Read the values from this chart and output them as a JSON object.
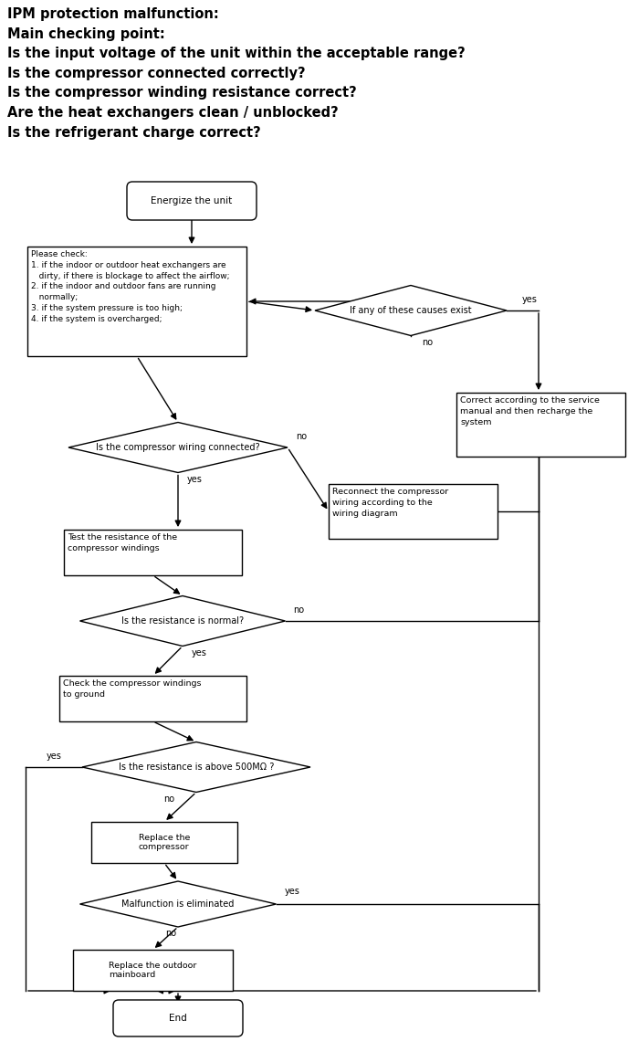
{
  "title_lines": [
    "IPM protection malfunction:",
    "Main checking point:",
    "Is the input voltage of the unit within the acceptable range?",
    "Is the compressor connected correctly?",
    "Is the compressor winding resistance correct?",
    "Are the heat exchangers clean / unblocked?",
    "Is the refrigerant charge correct?"
  ],
  "bg_color": "#ffffff",
  "box_edge_color": "#000000",
  "text_color": "#000000",
  "arrow_color": "#000000",
  "title_color": "#000000",
  "font_size_title": 10.5,
  "font_size_node": 7.5,
  "font_size_small": 6.5
}
